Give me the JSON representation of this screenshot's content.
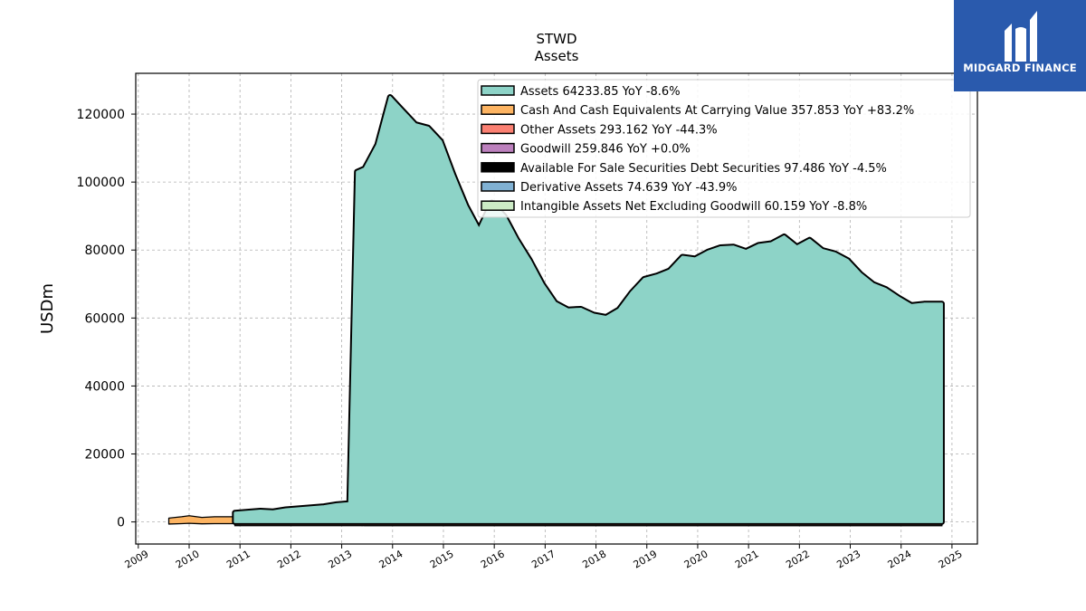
{
  "brand": {
    "name": "MIDGARD FINANCE",
    "color": "#2a5aad"
  },
  "chart_data": {
    "type": "area",
    "title": "STWD",
    "subtitle": "Assets",
    "ylabel": "USDm",
    "xlabel": "",
    "xlim": [
      2008.95,
      2025.5
    ],
    "ylim": [
      -6500,
      132000
    ],
    "grid": true,
    "legend_position": "top-right",
    "x_ticks": [
      "2009",
      "2010",
      "2011",
      "2012",
      "2013",
      "2014",
      "2015",
      "2016",
      "2017",
      "2018",
      "2019",
      "2020",
      "2021",
      "2022",
      "2023",
      "2024",
      "2025"
    ],
    "y_ticks": [
      0,
      20000,
      40000,
      60000,
      80000,
      100000,
      120000
    ],
    "series": [
      {
        "name": "Assets",
        "legend": "Assets  64233.85 YoY -8.6%",
        "color": "#8dd3c7",
        "x": [
          2010.9,
          2011.15,
          2011.4,
          2011.65,
          2011.9,
          2012.15,
          2012.4,
          2012.65,
          2012.9,
          2013.15,
          2013.3,
          2013.45,
          2013.7,
          2013.95,
          2014.2,
          2014.45,
          2014.7,
          2014.95,
          2015.2,
          2015.45,
          2015.7,
          2015.95,
          2016.2,
          2016.45,
          2016.7,
          2016.95,
          2017.2,
          2017.45,
          2017.7,
          2017.95,
          2018.2,
          2018.45,
          2018.7,
          2018.95,
          2019.2,
          2019.45,
          2019.7,
          2019.95,
          2020.2,
          2020.45,
          2020.7,
          2020.95,
          2021.2,
          2021.45,
          2021.7,
          2021.95,
          2022.2,
          2022.45,
          2022.7,
          2022.95,
          2023.2,
          2023.45,
          2023.7,
          2023.95,
          2024.2,
          2024.45,
          2024.8
        ],
        "values": [
          2700,
          3000,
          3300,
          3100,
          3700,
          4000,
          4300,
          4600,
          5200,
          5500,
          103000,
          104000,
          111000,
          125000,
          121000,
          117000,
          116000,
          112000,
          102000,
          93000,
          86000,
          94000,
          90000,
          83000,
          77000,
          70000,
          64500,
          62500,
          62700,
          61000,
          60300,
          62500,
          67500,
          71500,
          72500,
          74000,
          78000,
          77500,
          79500,
          80800,
          81000,
          79700,
          81500,
          82000,
          84000,
          81000,
          83000,
          80000,
          79000,
          77000,
          73000,
          70000,
          68500,
          66000,
          63800,
          64200,
          64200
        ]
      },
      {
        "name": "Cash And Cash Equivalents At Carrying Value",
        "legend": "Cash And Cash Equivalents At Carrying Value  357.853 YoY +83.2%",
        "color": "#fdb462",
        "x": [
          2009.6,
          2009.85,
          2010.0,
          2010.25,
          2010.5,
          2010.75,
          2010.9,
          2011.2,
          2011.5,
          2011.8,
          2012.1,
          2012.4,
          2012.7,
          2013.0,
          2013.3,
          2013.6,
          2014.0,
          2014.5,
          2015.0,
          2015.5,
          2016.0,
          2016.5,
          2017.0,
          2017.5,
          2018.0,
          2018.5,
          2019.0,
          2019.5,
          2020.0,
          2020.25,
          2020.5,
          2021.0,
          2021.5,
          2022.0,
          2022.5,
          2023.0,
          2023.5,
          2024.0,
          2024.5,
          2024.8
        ],
        "values": [
          600,
          1000,
          1300,
          800,
          1000,
          1000,
          1000,
          900,
          1000,
          800,
          900,
          700,
          800,
          1000,
          900,
          1200,
          1000,
          1100,
          1000,
          1100,
          1000,
          1100,
          1200,
          900,
          1100,
          900,
          1000,
          1100,
          1100,
          1400,
          900,
          1100,
          900,
          800,
          1000,
          900,
          1100,
          1100,
          900,
          800
        ]
      },
      {
        "name": "Other Assets",
        "legend": "Other Assets  293.162 YoY -44.3%",
        "color": "#fb8072",
        "x": [
          2010.9,
          2024.8
        ],
        "values": [
          300,
          300
        ]
      },
      {
        "name": "Goodwill",
        "legend": "Goodwill  259.846 YoY +0.0%",
        "color": "#bc80bd",
        "x": [
          2013.45,
          2024.8
        ],
        "values": [
          260,
          260
        ]
      },
      {
        "name": "Available For Sale Securities Debt Securities",
        "legend": "Available For Sale Securities Debt Securities  97.486 YoY -4.5%",
        "color": "#000000",
        "x": [
          2010.9,
          2024.8
        ],
        "values": [
          100,
          100
        ]
      },
      {
        "name": "Derivative Assets",
        "legend": "Derivative Assets  74.639 YoY -43.9%",
        "color": "#80b1d3",
        "x": [
          2010.9,
          2013.4
        ],
        "values": [
          75,
          75
        ]
      },
      {
        "name": "Intangible Assets Net Excluding Goodwill",
        "legend": "Intangible Assets Net Excluding Goodwill  60.159 YoY -8.8%",
        "color": "#ccebc5",
        "x": [
          2013.4,
          2024.8
        ],
        "values": [
          60,
          60
        ]
      }
    ]
  }
}
